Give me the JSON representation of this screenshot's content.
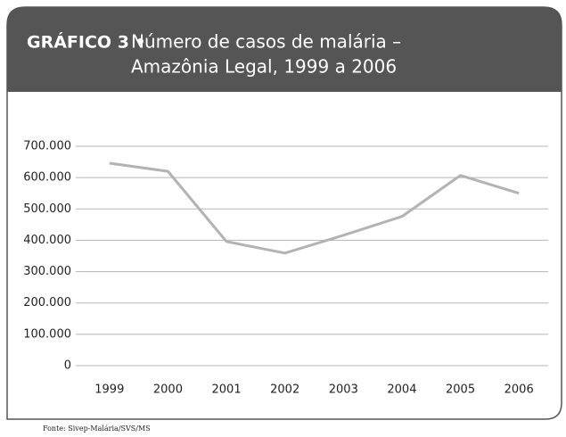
{
  "chart_data": {
    "type": "line",
    "label": "GRÁFICO 3 •",
    "title": [
      "Número de casos de malária –",
      "Amazônia Legal, 1999 a 2006"
    ],
    "source": "Fonte: Sivep-Malária/SVS/MS",
    "categories": [
      "1999",
      "2000",
      "2001",
      "2002",
      "2003",
      "2004",
      "2005",
      "2006"
    ],
    "values": [
      646000,
      620000,
      396000,
      359000,
      416000,
      476000,
      607000,
      550000
    ],
    "color": "#b3b3b3",
    "ylim": [
      0,
      700000
    ],
    "yticks": [
      0,
      {
        "value": 100000,
        "label": "100.000"
      },
      {
        "value": 200000,
        "label": "200.000"
      },
      {
        "value": 300000,
        "label": "300.000"
      },
      {
        "value": 400000,
        "label": "400.000"
      },
      {
        "value": 500000,
        "label": "500.000"
      },
      {
        "value": 600000,
        "label": "600.000"
      },
      {
        "value": 700000,
        "label": "700.000"
      }
    ],
    "grid": true
  }
}
